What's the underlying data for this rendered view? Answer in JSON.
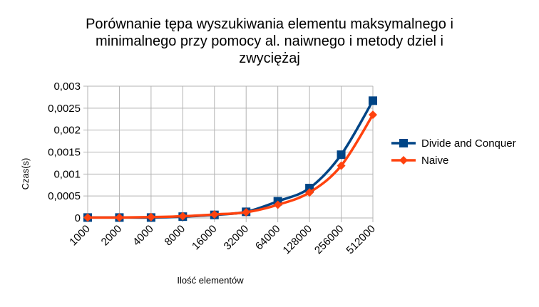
{
  "chart_data": {
    "type": "line",
    "title": "Porównanie tępa wyszukiwania elementu maksymalnego i minimalnego przy pomocy al. naiwnego i metody dziel i zwyciężaj",
    "title_lines": [
      "Porównanie tępa wyszukiwania elementu maksymalnego i",
      "minimalnego przy pomocy al. naiwnego i metody dziel i",
      "zwyciężaj"
    ],
    "xlabel": "Ilość elementów",
    "ylabel": "Czas(s)",
    "categories": [
      "1000",
      "2000",
      "4000",
      "8000",
      "16000",
      "32000",
      "64000",
      "128000",
      "256000",
      "512000"
    ],
    "ylim": [
      0,
      0.003
    ],
    "yticks": [
      0,
      0.0005,
      0.001,
      0.0015,
      0.002,
      0.0025,
      0.003
    ],
    "ytick_labels": [
      "0",
      "0,0005",
      "0,001",
      "0,0015",
      "0,002",
      "0,0025",
      "0,003"
    ],
    "grid": true,
    "legend_position": "right",
    "series": [
      {
        "name": "Divide and Conquer",
        "color": "#004586",
        "marker": "square",
        "values": [
          1e-05,
          1e-05,
          1e-05,
          3e-05,
          7e-05,
          0.00014,
          0.00038,
          0.00068,
          0.00144,
          0.00267
        ]
      },
      {
        "name": "Naive",
        "color": "#ff420e",
        "marker": "diamond",
        "values": [
          1e-05,
          1e-05,
          2e-05,
          4e-05,
          8e-05,
          0.00013,
          0.0003,
          0.00058,
          0.00119,
          0.00235
        ]
      }
    ]
  }
}
